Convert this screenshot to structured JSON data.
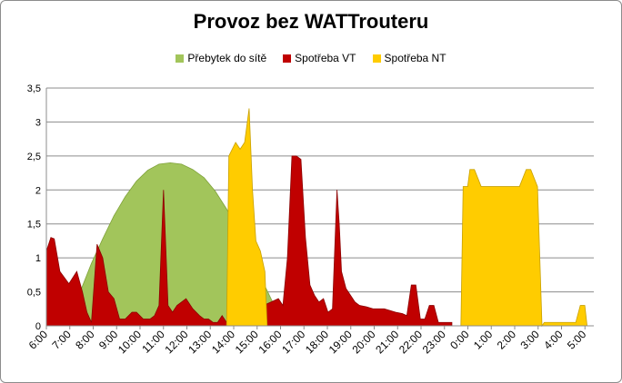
{
  "chart_data": {
    "type": "area",
    "title": "Provoz bez WATTrouteru",
    "xlabel": "",
    "ylabel": "",
    "ylim": [
      0,
      3.5
    ],
    "yticks": [
      "0",
      "0,5",
      "1",
      "1,5",
      "2",
      "2,5",
      "3",
      "3,5"
    ],
    "grid": true,
    "legend_position": "top",
    "x_range": [
      6,
      30.3
    ],
    "categories": [
      "6:00",
      "7:00",
      "8:00",
      "9:00",
      "10:00",
      "11:00",
      "12:00",
      "13:00",
      "14:00",
      "15:00",
      "16:00",
      "17:00",
      "18:00",
      "19:00",
      "20:00",
      "21:00",
      "22:00",
      "23:00",
      "0:00",
      "1:00",
      "2:00",
      "3:00",
      "4:00",
      "5:00"
    ],
    "series": [
      {
        "name": "Přebytek do sítě",
        "color": "#a2c55b",
        "x": [
          7.0,
          7.5,
          8.0,
          8.5,
          9.0,
          9.5,
          10.0,
          10.5,
          11.0,
          11.5,
          12.0,
          12.5,
          13.0,
          13.5,
          14.0,
          14.5,
          15.0,
          15.5,
          16.0,
          16.5,
          17.0
        ],
        "values": [
          0.0,
          0.5,
          0.92,
          1.28,
          1.62,
          1.9,
          2.13,
          2.29,
          2.38,
          2.4,
          2.38,
          2.3,
          2.18,
          1.98,
          1.72,
          1.41,
          1.08,
          0.72,
          0.38,
          0.1,
          0.0
        ]
      },
      {
        "name": "Spotřeba VT",
        "color": "#c00000",
        "x": [
          6.0,
          6.2,
          6.35,
          6.6,
          7.0,
          7.35,
          7.6,
          7.8,
          8.0,
          8.25,
          8.5,
          8.75,
          9.0,
          9.25,
          9.5,
          9.8,
          10.0,
          10.3,
          10.6,
          10.8,
          11.0,
          11.2,
          11.4,
          11.6,
          11.8,
          12.0,
          12.2,
          12.5,
          12.8,
          13.0,
          13.2,
          13.4,
          13.6,
          13.8,
          14.0,
          16.3,
          16.5,
          16.7,
          16.9,
          17.1,
          17.3,
          17.5,
          17.7,
          17.9,
          18.1,
          18.3,
          18.5,
          18.7,
          18.9,
          19.0,
          19.1,
          19.3,
          19.5,
          19.7,
          19.9,
          20.2,
          20.5,
          21.0,
          21.5,
          21.8,
          22.0,
          22.2,
          22.4,
          22.6,
          22.8,
          23.0,
          23.2,
          23.4,
          23.6,
          23.8,
          24.0
        ],
        "values": [
          1.1,
          1.3,
          1.28,
          0.8,
          0.62,
          0.8,
          0.5,
          0.2,
          0.05,
          1.2,
          1.0,
          0.5,
          0.4,
          0.1,
          0.1,
          0.2,
          0.2,
          0.1,
          0.1,
          0.15,
          0.3,
          2.0,
          0.3,
          0.2,
          0.3,
          0.35,
          0.4,
          0.25,
          0.15,
          0.1,
          0.1,
          0.05,
          0.05,
          0.15,
          0.05,
          0.4,
          0.3,
          1.0,
          2.5,
          2.5,
          2.45,
          1.3,
          0.6,
          0.45,
          0.35,
          0.4,
          0.2,
          0.25,
          2.0,
          1.5,
          0.8,
          0.55,
          0.45,
          0.35,
          0.3,
          0.28,
          0.25,
          0.25,
          0.2,
          0.18,
          0.15,
          0.6,
          0.6,
          0.1,
          0.1,
          0.3,
          0.3,
          0.05,
          0.05,
          0.05,
          0.05
        ]
      },
      {
        "name": "Spotřeba NT",
        "color": "#ffcc00",
        "x": [
          14.0,
          14.1,
          14.4,
          14.6,
          14.8,
          15.0,
          15.15,
          15.3,
          15.5,
          15.7,
          15.8,
          16.0,
          16.2,
          24.4,
          24.5,
          24.7,
          24.8,
          25.0,
          25.3,
          25.5,
          26.0,
          26.5,
          27.0,
          27.3,
          27.5,
          27.8,
          28.0,
          28.1,
          29.5,
          29.7,
          29.9,
          30.0
        ],
        "values": [
          0.0,
          2.5,
          2.7,
          2.6,
          2.7,
          3.2,
          2.0,
          1.25,
          1.1,
          0.8,
          0.0,
          0.0,
          0.0,
          0.0,
          2.05,
          2.05,
          2.3,
          2.3,
          2.05,
          2.05,
          2.05,
          2.05,
          2.05,
          2.3,
          2.3,
          2.05,
          0.0,
          0.05,
          0.05,
          0.3,
          0.3,
          0.0
        ]
      }
    ]
  }
}
